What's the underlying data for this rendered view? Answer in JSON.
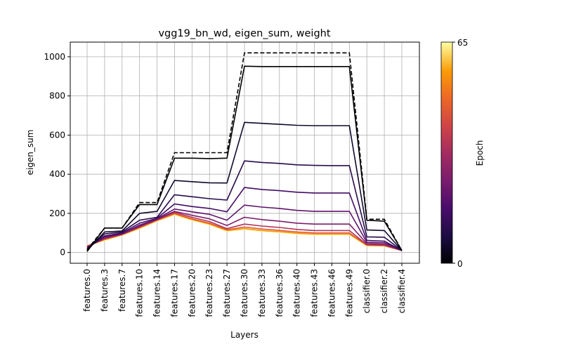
{
  "chart_data": {
    "type": "line",
    "title": "vgg19_bn_wd, eigen_sum, weight",
    "xlabel": "Layers",
    "ylabel": "eigen_sum",
    "categories": [
      "features.0",
      "features.3",
      "features.7",
      "features.10",
      "features.14",
      "features.17",
      "features.20",
      "features.23",
      "features.27",
      "features.30",
      "features.33",
      "features.36",
      "features.40",
      "features.43",
      "features.46",
      "features.49",
      "classifier.0",
      "classifier.2",
      "classifier.4"
    ],
    "ylim": [
      -55,
      1075
    ],
    "yticks": [
      0,
      200,
      400,
      600,
      800,
      1000
    ],
    "grid": true,
    "colorbar": {
      "label": "Epoch",
      "min": 0,
      "max": 65,
      "tick_labels": [
        "0",
        "65"
      ],
      "colormap": "inferno"
    },
    "reference_series": {
      "style": "dashed",
      "color": "#000000",
      "values": [
        15,
        125,
        125,
        255,
        255,
        510,
        510,
        510,
        510,
        1020,
        1020,
        1020,
        1020,
        1020,
        1020,
        1020,
        170,
        170,
        10
      ]
    },
    "series": [
      {
        "epoch": 0,
        "values": [
          5,
          125,
          125,
          245,
          245,
          482,
          482,
          480,
          482,
          952,
          950,
          950,
          950,
          950,
          950,
          950,
          165,
          160,
          10
        ]
      },
      {
        "epoch": 5,
        "values": [
          10,
          105,
          110,
          200,
          210,
          368,
          362,
          356,
          355,
          665,
          660,
          655,
          650,
          648,
          648,
          648,
          115,
          112,
          10
        ]
      },
      {
        "epoch": 10,
        "values": [
          15,
          95,
          105,
          165,
          180,
          295,
          285,
          275,
          268,
          468,
          460,
          455,
          448,
          445,
          444,
          444,
          80,
          78,
          10
        ]
      },
      {
        "epoch": 15,
        "values": [
          20,
          85,
          100,
          150,
          175,
          248,
          235,
          225,
          208,
          332,
          322,
          316,
          308,
          304,
          304,
          304,
          62,
          58,
          10
        ]
      },
      {
        "epoch": 20,
        "values": [
          25,
          80,
          95,
          140,
          172,
          222,
          208,
          195,
          165,
          242,
          232,
          225,
          215,
          210,
          210,
          210,
          52,
          50,
          10
        ]
      },
      {
        "epoch": 25,
        "values": [
          28,
          75,
          95,
          135,
          170,
          210,
          190,
          172,
          138,
          180,
          168,
          160,
          150,
          145,
          145,
          145,
          45,
          43,
          10
        ]
      },
      {
        "epoch": 35,
        "values": [
          30,
          70,
          93,
          130,
          168,
          205,
          180,
          158,
          122,
          145,
          135,
          128,
          118,
          112,
          112,
          112,
          40,
          38,
          10
        ]
      },
      {
        "epoch": 45,
        "values": [
          32,
          68,
          92,
          128,
          165,
          200,
          172,
          150,
          116,
          130,
          120,
          113,
          105,
          100,
          100,
          100,
          38,
          36,
          10
        ]
      },
      {
        "epoch": 55,
        "values": [
          34,
          65,
          90,
          125,
          163,
          196,
          168,
          145,
          112,
          122,
          112,
          106,
          98,
          94,
          94,
          94,
          36,
          34,
          10
        ]
      },
      {
        "epoch": 65,
        "values": [
          35,
          60,
          88,
          120,
          160,
          192,
          164,
          142,
          108,
          118,
          108,
          102,
          94,
          90,
          90,
          90,
          32,
          32,
          10
        ]
      }
    ]
  }
}
